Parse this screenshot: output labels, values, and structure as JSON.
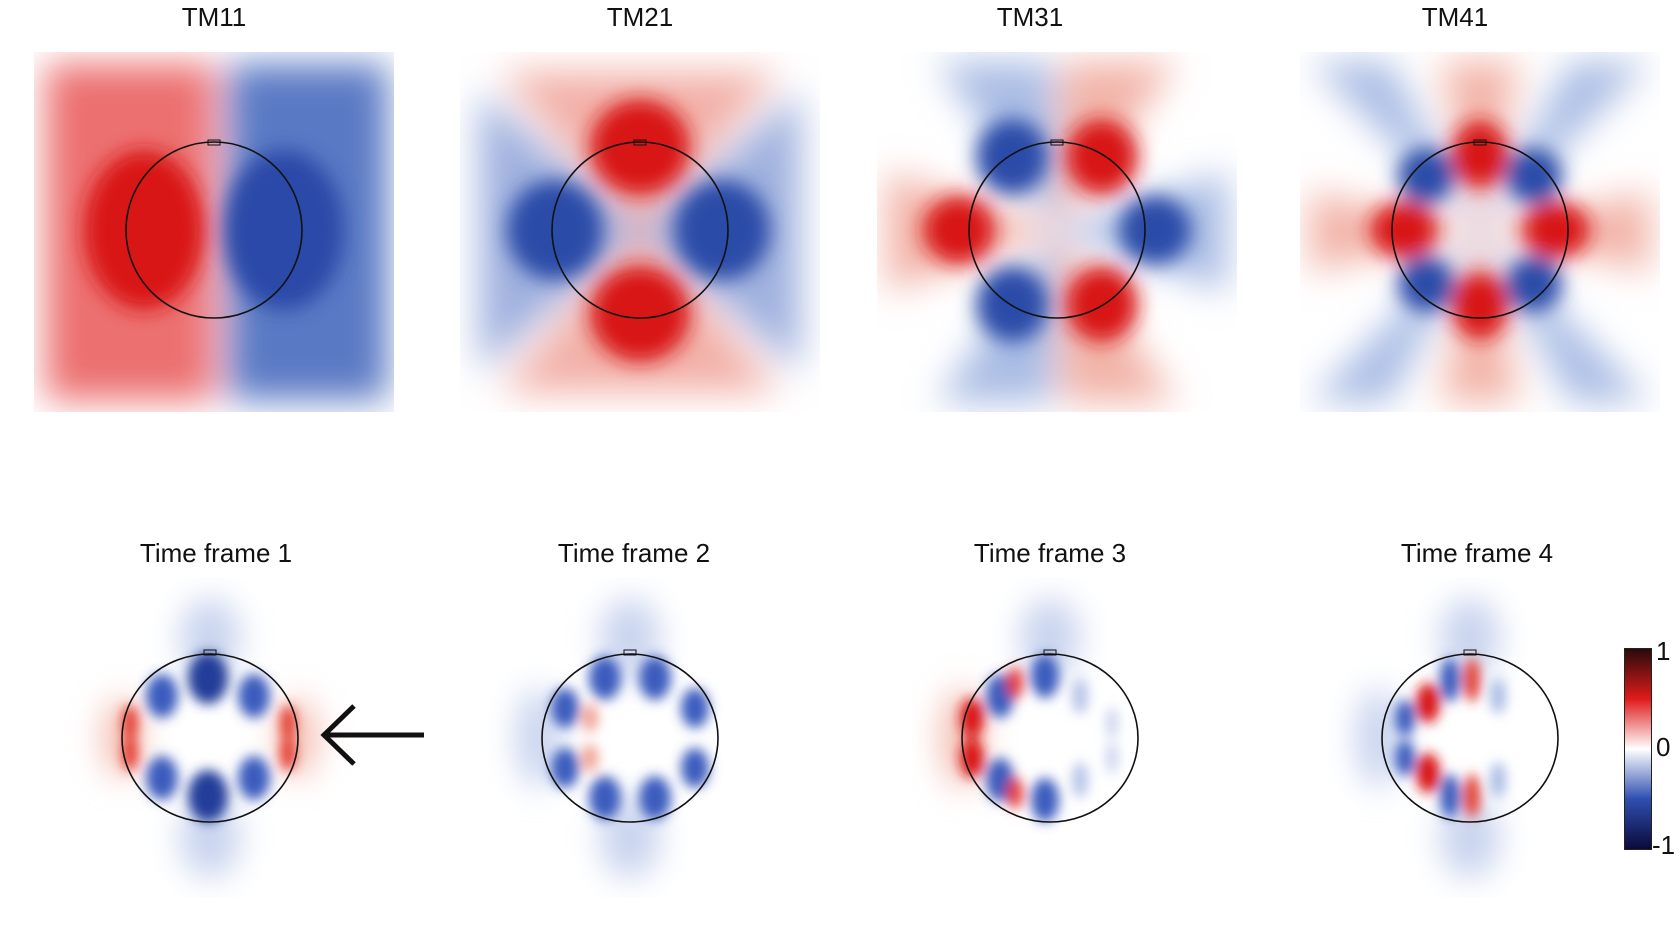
{
  "top_row": {
    "panels": [
      {
        "title": "TM11"
      },
      {
        "title": "TM21"
      },
      {
        "title": "TM31"
      },
      {
        "title": "TM41"
      }
    ]
  },
  "bottom_row": {
    "panels": [
      {
        "title": "Time frame 1"
      },
      {
        "title": "Time frame 2"
      },
      {
        "title": "Time frame 3"
      },
      {
        "title": "Time frame 4"
      }
    ]
  },
  "colorbar": {
    "max_label": "1",
    "mid_label": "0",
    "min_label": "-1",
    "colors": [
      "#2a0a0a",
      "#e01b1b",
      "#ffffff",
      "#2f4fb0",
      "#0a0a3a"
    ]
  },
  "colors": {
    "positive": "#e01b1b",
    "negative": "#2f4fb0",
    "outline": "#111111"
  },
  "annotation": {
    "arrow_direction": "left"
  }
}
